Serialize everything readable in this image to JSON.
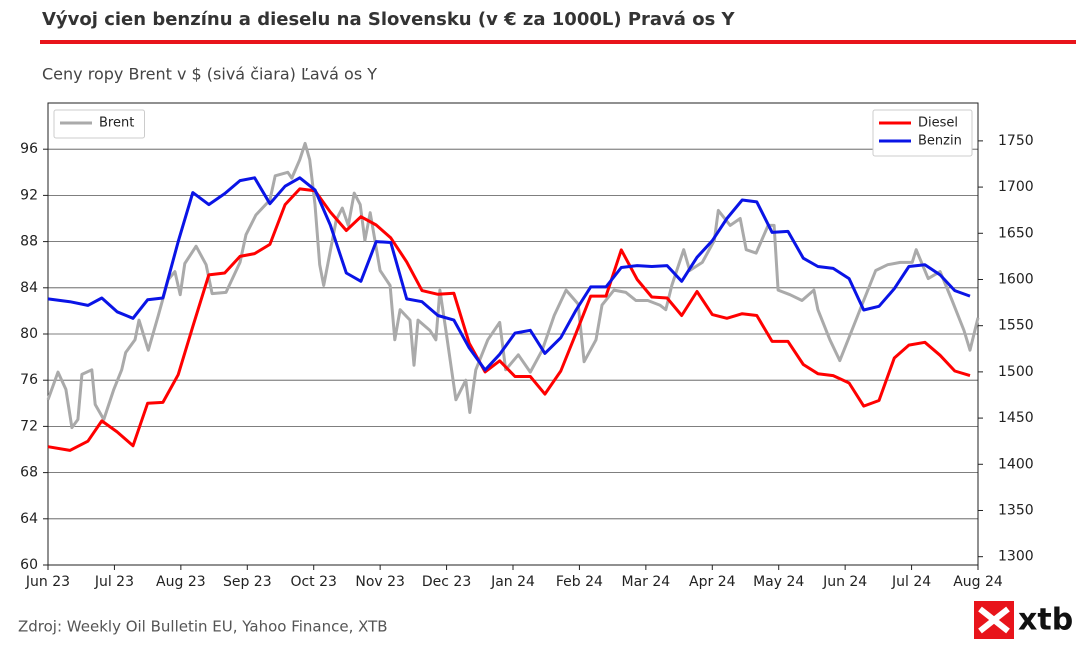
{
  "chart_data": {
    "type": "line",
    "title": "Vývoj cien benzínu a dieselu na Slovensku (v € za 1000L) Pravá os Y",
    "subtitle": "Ceny ropy Brent v $ (sivá čiara) Ľavá os Y",
    "source": "Zdroj: Weekly Oil Bulletin EU, Yahoo Finance, XTB",
    "xlim": [
      0,
      14
    ],
    "xticks": [
      {
        "value": 0,
        "label": "Jun 23"
      },
      {
        "value": 1,
        "label": "Jul 23"
      },
      {
        "value": 2,
        "label": "Aug 23"
      },
      {
        "value": 3,
        "label": "Sep 23"
      },
      {
        "value": 4,
        "label": "Oct 23"
      },
      {
        "value": 5,
        "label": "Nov 23"
      },
      {
        "value": 6,
        "label": "Dec 23"
      },
      {
        "value": 7,
        "label": "Jan 24"
      },
      {
        "value": 8,
        "label": "Feb 24"
      },
      {
        "value": 9,
        "label": "Mar 24"
      },
      {
        "value": 10,
        "label": "Apr 24"
      },
      {
        "value": 11,
        "label": "May 24"
      },
      {
        "value": 12,
        "label": "Jun 24"
      },
      {
        "value": 13,
        "label": "Jul 24"
      },
      {
        "value": 14,
        "label": "Aug 24"
      }
    ],
    "ylim": [
      60,
      100
    ],
    "yticks": [
      60,
      64,
      68,
      72,
      76,
      80,
      84,
      88,
      92,
      96
    ],
    "y2lim": [
      1291,
      1791
    ],
    "y2ticks": [
      1300,
      1350,
      1400,
      1450,
      1500,
      1550,
      1600,
      1650,
      1700,
      1750
    ],
    "grid": true,
    "legend": {
      "y": "upper left",
      "y2": "upper right"
    },
    "series": [
      {
        "name": "Brent",
        "color": "#aaaaaa",
        "axis": "y",
        "x": [
          0,
          0.15,
          0.27,
          0.36,
          0.45,
          0.51,
          0.66,
          0.71,
          0.84,
          0.99,
          1.11,
          1.17,
          1.31,
          1.37,
          1.51,
          1.66,
          1.81,
          1.91,
          1.99,
          2.06,
          2.23,
          2.38,
          2.47,
          2.68,
          2.89,
          2.98,
          3.13,
          3.34,
          3.42,
          3.61,
          3.67,
          3.79,
          3.87,
          3.94,
          4.02,
          4.09,
          4.15,
          4.34,
          4.43,
          4.52,
          4.61,
          4.7,
          4.77,
          4.85,
          5.0,
          5.15,
          5.22,
          5.3,
          5.45,
          5.51,
          5.57,
          5.75,
          5.84,
          5.9,
          5.99,
          6.14,
          6.29,
          6.35,
          6.44,
          6.62,
          6.8,
          6.89,
          7.08,
          7.26,
          7.44,
          7.62,
          7.8,
          7.98,
          8.07,
          8.25,
          8.34,
          8.52,
          8.7,
          8.85,
          9.03,
          9.21,
          9.3,
          9.39,
          9.57,
          9.66,
          9.85,
          10.03,
          10.09,
          10.27,
          10.42,
          10.51,
          10.66,
          10.84,
          10.93,
          10.99,
          11.17,
          11.35,
          11.53,
          11.59,
          11.77,
          11.92,
          12.1,
          12.28,
          12.46,
          12.64,
          12.83,
          13.01,
          13.07,
          13.25,
          13.43,
          13.61,
          13.79,
          13.88,
          14.0
        ],
        "values": [
          74.3,
          76.7,
          75.2,
          71.9,
          72.6,
          76.5,
          76.9,
          73.9,
          72.6,
          75.2,
          76.9,
          78.4,
          79.5,
          81.2,
          78.6,
          81.6,
          84.7,
          85.4,
          83.4,
          86.1,
          87.6,
          86.0,
          83.5,
          83.6,
          86.2,
          88.6,
          90.3,
          91.6,
          93.7,
          94.0,
          93.5,
          95.1,
          96.5,
          95.1,
          91.2,
          86.0,
          84.2,
          89.9,
          90.9,
          89.4,
          92.2,
          91.2,
          88.1,
          90.5,
          85.5,
          84.2,
          79.5,
          82.1,
          81.2,
          77.3,
          81.2,
          80.3,
          79.5,
          83.8,
          80.3,
          74.3,
          76.0,
          73.2,
          76.9,
          79.5,
          81.0,
          76.9,
          78.2,
          76.7,
          78.6,
          81.6,
          83.8,
          82.6,
          77.6,
          79.5,
          82.5,
          83.8,
          83.6,
          82.9,
          82.9,
          82.5,
          82.1,
          84.2,
          87.3,
          85.5,
          86.2,
          88.1,
          90.7,
          89.4,
          90.0,
          87.3,
          87.0,
          89.4,
          89.4,
          83.8,
          83.4,
          82.9,
          83.8,
          82.1,
          79.5,
          77.7,
          80.3,
          82.9,
          85.5,
          86.0,
          86.2,
          86.2,
          87.3,
          84.8,
          85.4,
          82.9,
          80.3,
          78.6,
          81.4
        ]
      },
      {
        "name": "Diesel",
        "color": "#ff0000",
        "axis": "y2",
        "x": [
          0,
          0.33,
          0.6,
          0.81,
          1.04,
          1.28,
          1.5,
          1.73,
          1.96,
          2.18,
          2.42,
          2.66,
          2.89,
          3.11,
          3.34,
          3.57,
          3.79,
          4.02,
          4.25,
          4.49,
          4.71,
          4.94,
          5.16,
          5.4,
          5.63,
          5.87,
          6.11,
          6.34,
          6.58,
          6.8,
          7.03,
          7.26,
          7.48,
          7.72,
          7.95,
          8.17,
          8.4,
          8.63,
          8.87,
          9.09,
          9.32,
          9.54,
          9.77,
          10.0,
          10.22,
          10.45,
          10.67,
          10.9,
          11.14,
          11.37,
          11.59,
          11.82,
          12.06,
          12.28,
          12.51,
          12.74,
          12.96,
          13.2,
          13.43,
          13.65,
          13.88
        ],
        "values": [
          1419,
          1415,
          1425,
          1447,
          1435,
          1420,
          1466,
          1467,
          1497,
          1549,
          1605,
          1607,
          1625,
          1628,
          1638,
          1681,
          1698,
          1696,
          1673,
          1653,
          1668,
          1659,
          1645,
          1619,
          1588,
          1584,
          1585,
          1531,
          1500,
          1512,
          1495,
          1495,
          1476,
          1501,
          1542,
          1582,
          1582,
          1632,
          1600,
          1581,
          1580,
          1561,
          1587,
          1562,
          1558,
          1563,
          1561,
          1533,
          1533,
          1508,
          1498,
          1496,
          1488,
          1463,
          1469,
          1515,
          1529,
          1532,
          1518,
          1501,
          1496
        ]
      },
      {
        "name": "Benzin",
        "color": "#0a14e6",
        "axis": "y2",
        "x": [
          0,
          0.33,
          0.6,
          0.81,
          1.04,
          1.28,
          1.5,
          1.73,
          1.96,
          2.18,
          2.42,
          2.66,
          2.89,
          3.11,
          3.34,
          3.57,
          3.79,
          4.02,
          4.25,
          4.49,
          4.71,
          4.94,
          5.16,
          5.4,
          5.63,
          5.87,
          6.11,
          6.34,
          6.58,
          6.8,
          7.03,
          7.26,
          7.48,
          7.72,
          7.95,
          8.17,
          8.4,
          8.63,
          8.87,
          9.09,
          9.32,
          9.54,
          9.77,
          10.0,
          10.22,
          10.45,
          10.67,
          10.9,
          11.14,
          11.37,
          11.59,
          11.82,
          12.06,
          12.28,
          12.51,
          12.74,
          12.96,
          13.2,
          13.43,
          13.65,
          13.88
        ],
        "values": [
          1579,
          1576,
          1572,
          1580,
          1565,
          1558,
          1578,
          1580,
          1641,
          1694,
          1681,
          1693,
          1707,
          1710,
          1682,
          1701,
          1710,
          1697,
          1659,
          1607,
          1598,
          1641,
          1640,
          1579,
          1576,
          1561,
          1556,
          1526,
          1502,
          1519,
          1542,
          1545,
          1520,
          1537,
          1567,
          1592,
          1592,
          1613,
          1615,
          1614,
          1615,
          1598,
          1624,
          1642,
          1666,
          1686,
          1684,
          1651,
          1652,
          1623,
          1614,
          1612,
          1601,
          1567,
          1571,
          1590,
          1614,
          1616,
          1605,
          1588,
          1582
        ]
      }
    ]
  },
  "logo": "xtb"
}
